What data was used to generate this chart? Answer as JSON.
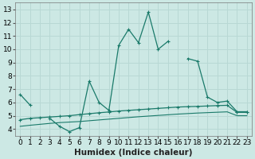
{
  "xlabel": "Humidex (Indice chaleur)",
  "x": [
    0,
    1,
    2,
    3,
    4,
    5,
    6,
    7,
    8,
    9,
    10,
    11,
    12,
    13,
    14,
    15,
    16,
    17,
    18,
    19,
    20,
    21,
    22,
    23
  ],
  "line_main": [
    6.6,
    5.8,
    null,
    4.8,
    4.2,
    3.8,
    4.1,
    7.6,
    6.0,
    5.4,
    10.3,
    11.5,
    10.5,
    12.8,
    10.0,
    10.6,
    null,
    9.3,
    9.1,
    6.4,
    6.0,
    6.1,
    5.3,
    5.3
  ],
  "line_upper": [
    4.7,
    4.8,
    4.85,
    4.9,
    4.95,
    5.0,
    5.08,
    5.15,
    5.22,
    5.28,
    5.35,
    5.4,
    5.45,
    5.5,
    5.55,
    5.6,
    5.65,
    5.68,
    5.7,
    5.73,
    5.76,
    5.78,
    5.25,
    5.25
  ],
  "line_lower": [
    4.2,
    4.28,
    4.35,
    4.42,
    4.48,
    4.52,
    4.56,
    4.62,
    4.68,
    4.74,
    4.8,
    4.86,
    4.92,
    4.97,
    5.02,
    5.07,
    5.12,
    5.16,
    5.2,
    5.23,
    5.26,
    5.29,
    5.0,
    5.0
  ],
  "ylim": [
    3.5,
    13.5
  ],
  "yticks": [
    4,
    5,
    6,
    7,
    8,
    9,
    10,
    11,
    12,
    13
  ],
  "xticks": [
    0,
    1,
    2,
    3,
    4,
    5,
    6,
    7,
    8,
    9,
    10,
    11,
    12,
    13,
    14,
    15,
    16,
    17,
    18,
    19,
    20,
    21,
    22,
    23
  ],
  "line_color": "#1a7a6a",
  "bg_color": "#cce8e4",
  "grid_color": "#b8d8d4",
  "tick_fontsize": 6.5,
  "label_fontsize": 7.5
}
